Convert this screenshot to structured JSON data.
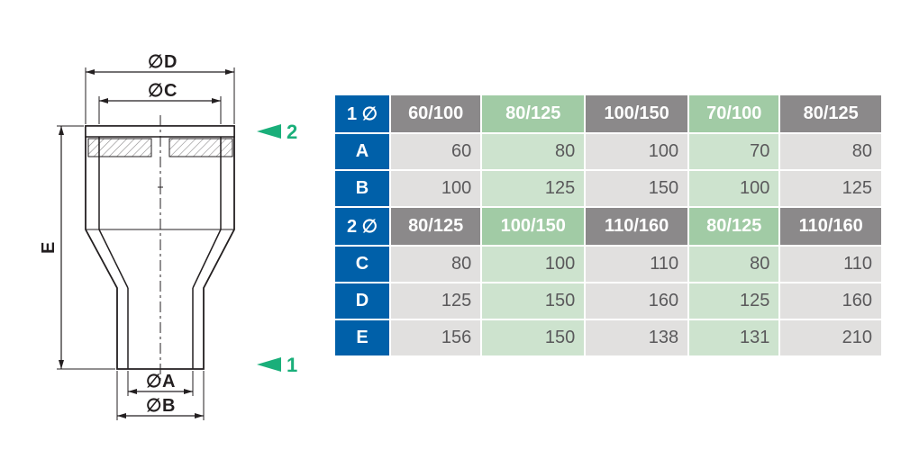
{
  "colors": {
    "blue": "#0060a9",
    "darkgray": "#8b898a",
    "lightgray": "#e1e0df",
    "greenHeader": "#a1cba5",
    "greenCell": "#cde3ce",
    "text": "#5a595b",
    "white": "#ffffff",
    "arrowGreen": "#1aaf7a",
    "lineblack": "#231f20"
  },
  "diagram": {
    "labels": {
      "D": "D",
      "C": "C",
      "A": "A",
      "B": "B",
      "E": "E",
      "one": "1",
      "two": "2",
      "diameter": "∅"
    }
  },
  "table": {
    "rows": [
      {
        "type": "section",
        "label": "1 ∅",
        "cells": [
          {
            "v": "60/100",
            "bg": "darkgray"
          },
          {
            "v": "80/125",
            "bg": "greenHeader"
          },
          {
            "v": "100/150",
            "bg": "darkgray"
          },
          {
            "v": "70/100",
            "bg": "greenHeader"
          },
          {
            "v": "80/125",
            "bg": "darkgray"
          }
        ]
      },
      {
        "type": "data",
        "label": "A",
        "cells": [
          {
            "v": "60",
            "bg": "lightgray"
          },
          {
            "v": "80",
            "bg": "greenCell"
          },
          {
            "v": "100",
            "bg": "lightgray"
          },
          {
            "v": "70",
            "bg": "greenCell"
          },
          {
            "v": "80",
            "bg": "lightgray"
          }
        ]
      },
      {
        "type": "data",
        "label": "B",
        "cells": [
          {
            "v": "100",
            "bg": "lightgray"
          },
          {
            "v": "125",
            "bg": "greenCell"
          },
          {
            "v": "150",
            "bg": "lightgray"
          },
          {
            "v": "100",
            "bg": "greenCell"
          },
          {
            "v": "125",
            "bg": "lightgray"
          }
        ]
      },
      {
        "type": "section",
        "label": "2 ∅",
        "cells": [
          {
            "v": "80/125",
            "bg": "darkgray"
          },
          {
            "v": "100/150",
            "bg": "greenHeader"
          },
          {
            "v": "110/160",
            "bg": "darkgray"
          },
          {
            "v": "80/125",
            "bg": "greenHeader"
          },
          {
            "v": "110/160",
            "bg": "darkgray"
          }
        ]
      },
      {
        "type": "data",
        "label": "C",
        "cells": [
          {
            "v": "80",
            "bg": "lightgray"
          },
          {
            "v": "100",
            "bg": "greenCell"
          },
          {
            "v": "110",
            "bg": "lightgray"
          },
          {
            "v": "80",
            "bg": "greenCell"
          },
          {
            "v": "110",
            "bg": "lightgray"
          }
        ]
      },
      {
        "type": "data",
        "label": "D",
        "cells": [
          {
            "v": "125",
            "bg": "lightgray"
          },
          {
            "v": "150",
            "bg": "greenCell"
          },
          {
            "v": "160",
            "bg": "lightgray"
          },
          {
            "v": "125",
            "bg": "greenCell"
          },
          {
            "v": "160",
            "bg": "lightgray"
          }
        ]
      },
      {
        "type": "data",
        "label": "E",
        "cells": [
          {
            "v": "156",
            "bg": "lightgray"
          },
          {
            "v": "150",
            "bg": "greenCell"
          },
          {
            "v": "138",
            "bg": "lightgray"
          },
          {
            "v": "131",
            "bg": "greenCell"
          },
          {
            "v": "210",
            "bg": "lightgray"
          }
        ]
      }
    ]
  }
}
